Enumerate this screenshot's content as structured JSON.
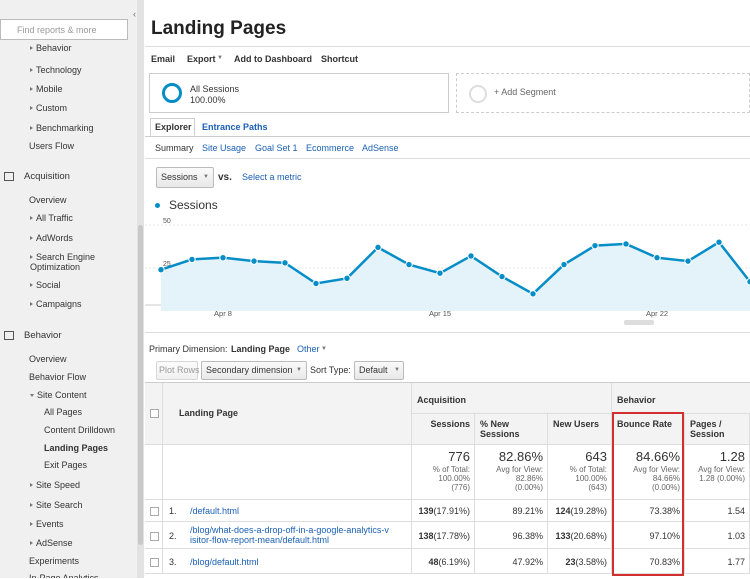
{
  "sidebar": {
    "search_placeholder": "Find reports & more",
    "items": [
      "Behavior",
      "Technology",
      "Mobile",
      "Custom",
      "Benchmarking",
      "Users Flow",
      "Acquisition",
      "Overview",
      "All Traffic",
      "AdWords",
      "Search Engine Optimization",
      "Social",
      "Campaigns",
      "Behavior",
      "Overview",
      "Behavior Flow",
      "Site Content",
      "All Pages",
      "Content Drilldown",
      "Landing Pages",
      "Exit Pages",
      "Site Speed",
      "Site Search",
      "Events",
      "AdSense",
      "Experiments",
      "In-Page Analytics"
    ]
  },
  "header": {
    "title": "Landing Pages",
    "toolbar": [
      "Email",
      "Export",
      "Add to Dashboard",
      "Shortcut"
    ]
  },
  "segments": {
    "active_name": "All Sessions",
    "active_value": "100.00%",
    "add": "+ Add Segment"
  },
  "tabs": [
    "Explorer",
    "Entrance Paths"
  ],
  "subtabs": [
    "Summary",
    "Site Usage",
    "Goal Set 1",
    "Ecommerce",
    "AdSense"
  ],
  "metric": {
    "selected": "Sessions",
    "vs": "vs.",
    "select": "Select a metric"
  },
  "chart_data": {
    "type": "line",
    "categories": [
      null,
      null,
      "Apr 8",
      null,
      null,
      null,
      null,
      null,
      null,
      "Apr 15",
      null,
      null,
      null,
      null,
      null,
      null,
      "Apr 22",
      null,
      null,
      null
    ],
    "series": [
      {
        "name": "Sessions",
        "color": "#058dc7",
        "values": [
          24,
          30,
          31,
          29,
          28,
          16,
          19,
          37,
          27,
          22,
          32,
          20,
          10,
          27,
          38,
          39,
          31,
          29,
          40,
          17
        ]
      }
    ],
    "ylim": [
      0,
      50
    ],
    "yticks": [
      25,
      50
    ],
    "grid": true
  },
  "dimension": {
    "label": "Primary Dimension:",
    "value": "Landing Page",
    "other": "Other"
  },
  "controls": {
    "plot_rows": "Plot Rows",
    "secondary": "Secondary dimension",
    "sort_label": "Sort Type:",
    "sort": "Default"
  },
  "table": {
    "groups": [
      "Acquisition",
      "Behavior"
    ],
    "columns": [
      "Landing Page",
      "Sessions",
      "% New Sessions",
      "New Users",
      "Bounce Rate",
      "Pages / Session"
    ],
    "totals": [
      {
        "value": "776",
        "lines": [
          "% of Total:",
          "100.00%",
          "(776)"
        ]
      },
      {
        "value": "82.86%",
        "lines": [
          "Avg for View:",
          "82.86%",
          "(0.00%)"
        ]
      },
      {
        "value": "643",
        "lines": [
          "% of Total:",
          "100.00%",
          "(643)"
        ]
      },
      {
        "value": "84.66%",
        "lines": [
          "Avg for View:",
          "84.66%",
          "(0.00%)"
        ]
      },
      {
        "value": "1.28",
        "lines": [
          "Avg for View:",
          "1.28 (0.00%)"
        ]
      }
    ],
    "rows": [
      {
        "index": "1.",
        "page": "/default.html",
        "sessions": "139",
        "sessions_pct": "(17.91%)",
        "new_sessions": "89.21%",
        "new_users": "124",
        "new_users_pct": "(19.28%)",
        "bounce_rate": "73.38%",
        "pages_session": "1.54"
      },
      {
        "index": "2.",
        "page": "/blog/what-does-a-drop-off-in-a-google-analytics-visitor-flow-report-mean/default.html",
        "sessions": "138",
        "sessions_pct": "(17.78%)",
        "new_sessions": "96.38%",
        "new_users": "133",
        "new_users_pct": "(20.68%)",
        "bounce_rate": "97.10%",
        "pages_session": "1.03"
      },
      {
        "index": "3.",
        "page": "/blog/default.html",
        "sessions": "48",
        "sessions_pct": "(6.19%)",
        "new_sessions": "47.92%",
        "new_users": "23",
        "new_users_pct": "(3.58%)",
        "bounce_rate": "70.83%",
        "pages_session": "1.77"
      }
    ]
  }
}
